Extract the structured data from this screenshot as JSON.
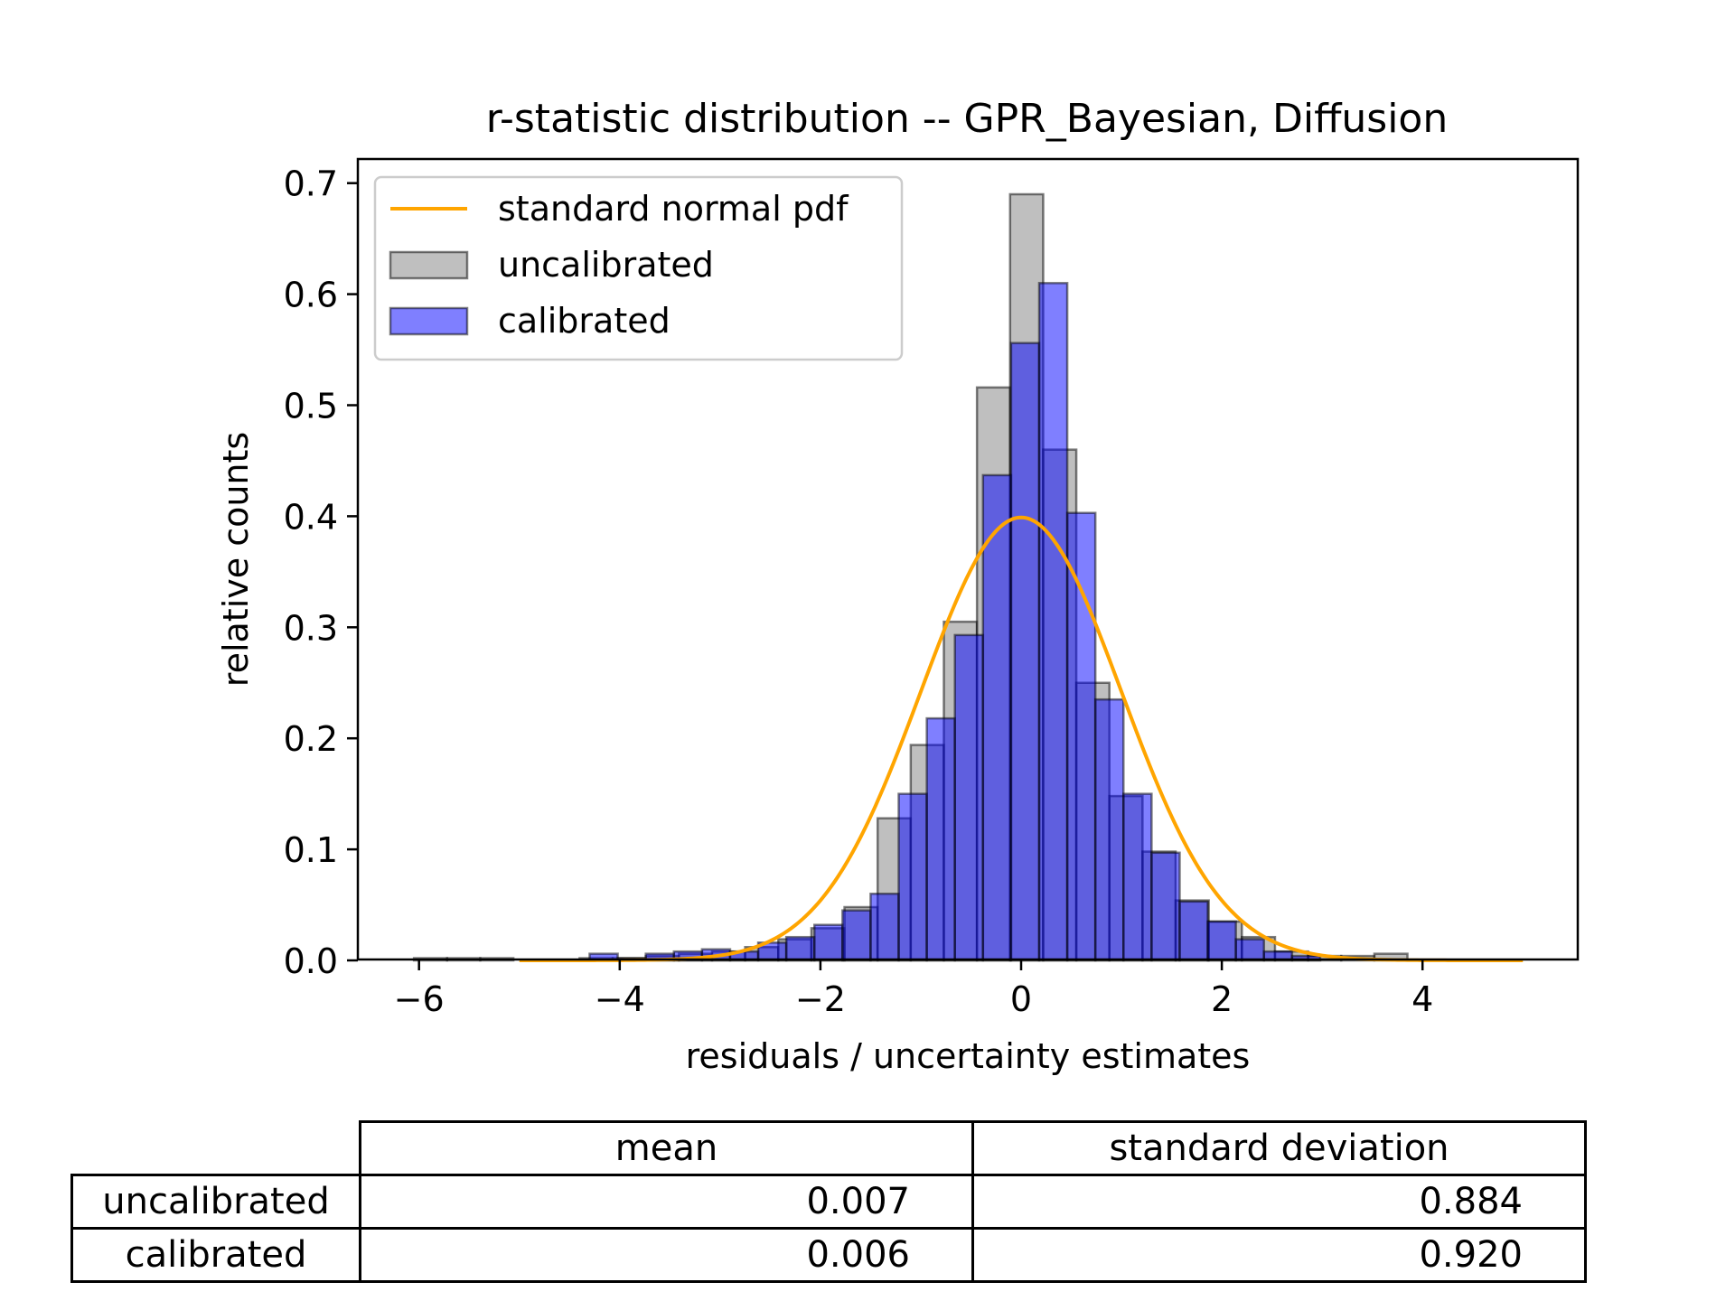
{
  "chart_data": {
    "type": "bar",
    "title": "r-statistic distribution -- GPR_Bayesian, Diffusion",
    "xlabel": "residuals / uncertainty estimates",
    "ylabel": "relative counts",
    "xlim": [
      -6.55,
      5.55
    ],
    "ylim": [
      0,
      0.7
    ],
    "xticks": [
      -6,
      -4,
      -2,
      0,
      2,
      4
    ],
    "xtick_labels": [
      "−6",
      "−4",
      "−2",
      "0",
      "2",
      "4"
    ],
    "yticks": [
      0.0,
      0.1,
      0.2,
      0.3,
      0.4,
      0.5,
      0.6,
      0.7
    ],
    "ytick_labels": [
      "0.0",
      "0.1",
      "0.2",
      "0.3",
      "0.4",
      "0.5",
      "0.6",
      "0.7"
    ],
    "grid": false,
    "legend_position": "top-left",
    "series": [
      {
        "name": "uncalibrated",
        "kind": "histogram",
        "color": "#808080",
        "bin_edges": [
          -6.05,
          -5.72,
          -5.39,
          -5.06,
          -4.73,
          -4.4,
          -4.07,
          -3.74,
          -3.41,
          -3.08,
          -2.75,
          -2.42,
          -2.09,
          -1.76,
          -1.43,
          -1.1,
          -0.77,
          -0.44,
          -0.11,
          0.22,
          0.55,
          0.88,
          1.21,
          1.54,
          1.87,
          2.2,
          2.53,
          2.86,
          3.19,
          3.52,
          3.85
        ],
        "values": [
          0.002,
          0.002,
          0.002,
          0.0,
          0.0,
          0.002,
          0.002,
          0.004,
          0.006,
          0.008,
          0.012,
          0.019,
          0.029,
          0.048,
          0.128,
          0.194,
          0.305,
          0.516,
          0.69,
          0.46,
          0.25,
          0.148,
          0.098,
          0.054,
          0.035,
          0.021,
          0.008,
          0.004,
          0.004,
          0.006
        ]
      },
      {
        "name": "calibrated",
        "kind": "histogram",
        "color": "#0000ff",
        "bin_edges": [
          -4.3,
          -4.02,
          -3.74,
          -3.46,
          -3.18,
          -2.9,
          -2.62,
          -2.34,
          -2.06,
          -1.78,
          -1.5,
          -1.22,
          -0.94,
          -0.66,
          -0.38,
          -0.1,
          0.18,
          0.46,
          0.74,
          1.02,
          1.3,
          1.58,
          1.86,
          2.14,
          2.42,
          2.7,
          2.98
        ],
        "values": [
          0.006,
          0.002,
          0.006,
          0.008,
          0.01,
          0.008,
          0.016,
          0.021,
          0.032,
          0.045,
          0.06,
          0.15,
          0.218,
          0.293,
          0.437,
          0.556,
          0.61,
          0.403,
          0.235,
          0.15,
          0.097,
          0.053,
          0.035,
          0.019,
          0.008,
          0.004
        ]
      },
      {
        "name": "standard normal pdf",
        "kind": "line",
        "color": "#ffa500",
        "function": "standard normal pdf",
        "x_range": [
          -5,
          5
        ]
      }
    ]
  },
  "table": {
    "col_headers": [
      "mean",
      "standard deviation"
    ],
    "rows": [
      {
        "label": "uncalibrated",
        "mean": "0.007",
        "std": "0.884"
      },
      {
        "label": "calibrated",
        "mean": "0.006",
        "std": "0.920"
      }
    ]
  }
}
